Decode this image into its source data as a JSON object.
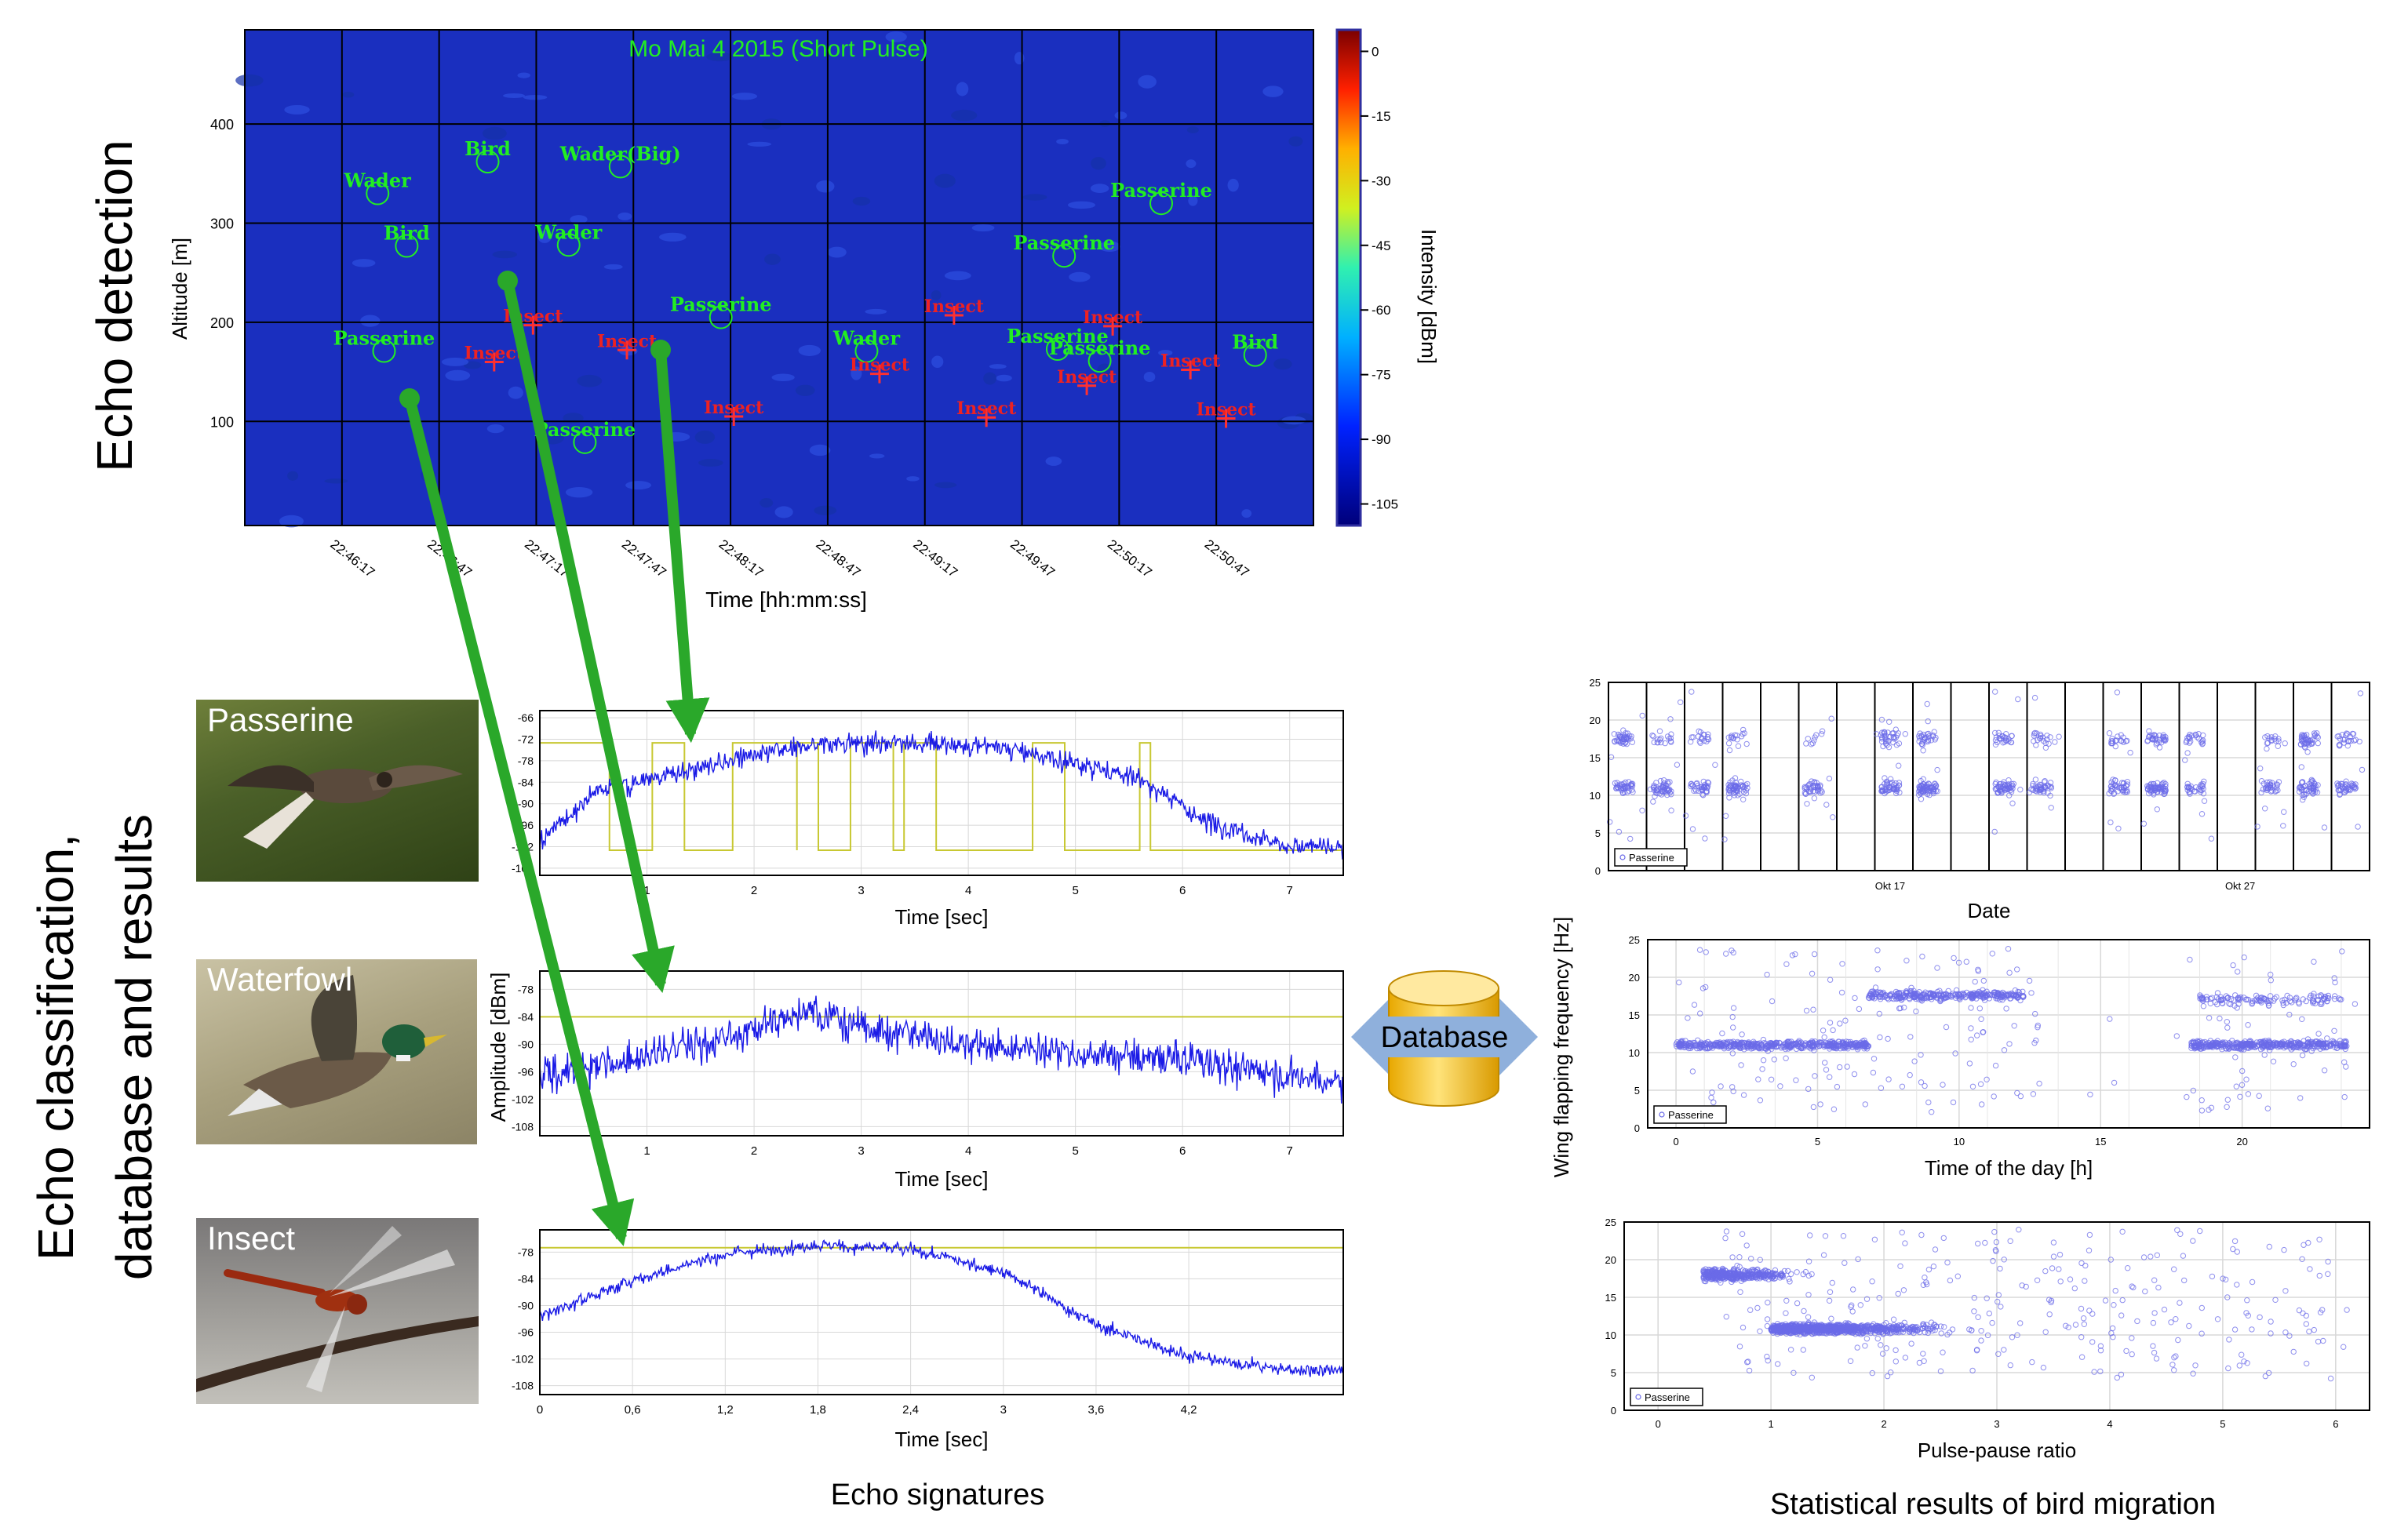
{
  "sections": {
    "echo_detection": "Echo detection",
    "echo_classification": "Echo classification, database and results",
    "classification_line1": "Echo classification,",
    "classification_line2": "database and results"
  },
  "captions": {
    "echo_signatures": "Echo signatures",
    "statistical_results": "Statistical results of bird migration"
  },
  "database": {
    "label": "Database"
  },
  "photos": [
    {
      "label": "Passerine"
    },
    {
      "label": "Waterfowl"
    },
    {
      "label": "Insect"
    }
  ],
  "colors": {
    "heatmap_bg": "#1a2fbf",
    "bird_label": "#22ee22",
    "insect_label": "#ee2222",
    "arrow": "#2aa82a",
    "signal": "#1a1ae6",
    "threshold": "#c8c832",
    "scatter": "#6b6be8",
    "database_cylinder": "#f7c21c",
    "database_arrow": "#8fb0dc"
  },
  "chart_data": [
    {
      "id": "heatmap",
      "type": "heatmap",
      "title": "Mo Mai 4 2015 (Short Pulse)",
      "xlabel": "Time [hh:mm:ss]",
      "ylabel": "Altitude [m]",
      "x_ticks": [
        "22:46:17",
        "22:46:47",
        "22:47:17",
        "22:47:47",
        "22:48:17",
        "22:48:47",
        "22:49:17",
        "22:49:47",
        "22:50:17",
        "22:50:47"
      ],
      "y_ticks": [
        100,
        200,
        300,
        400
      ],
      "ylim": [
        -5,
        495
      ],
      "colorbar": {
        "label": "Intensity [dBm]",
        "ticks": [
          0,
          -15,
          -30,
          -45,
          -60,
          -75,
          -90,
          -105
        ],
        "range": [
          -110,
          5
        ]
      },
      "echoes": [
        {
          "label": "Wader",
          "class": "bird",
          "t": 11,
          "alt": 330
        },
        {
          "label": "Bird",
          "class": "bird",
          "t": 45,
          "alt": 362
        },
        {
          "label": "Wader(Big)",
          "class": "bird",
          "t": 86,
          "alt": 357
        },
        {
          "label": "Bird",
          "class": "bird",
          "t": 20,
          "alt": 277
        },
        {
          "label": "Wader",
          "class": "bird",
          "t": 70,
          "alt": 278
        },
        {
          "label": "Passerine",
          "class": "bird",
          "t": 253,
          "alt": 320
        },
        {
          "label": "Passerine",
          "class": "bird",
          "t": 223,
          "alt": 267
        },
        {
          "label": "Passerine",
          "class": "bird",
          "t": 13,
          "alt": 171
        },
        {
          "label": "Passerine",
          "class": "bird",
          "t": 117,
          "alt": 205
        },
        {
          "label": "Wader",
          "class": "bird",
          "t": 162,
          "alt": 171
        },
        {
          "label": "Passerine",
          "class": "bird",
          "t": 221,
          "alt": 173
        },
        {
          "label": "Passerine",
          "class": "bird",
          "t": 234,
          "alt": 161
        },
        {
          "label": "Bird",
          "class": "bird",
          "t": 282,
          "alt": 167
        },
        {
          "label": "Passerine",
          "class": "bird",
          "t": 75,
          "alt": 79
        },
        {
          "label": "Insect",
          "class": "insect",
          "t": 59,
          "alt": 197
        },
        {
          "label": "Insect",
          "class": "insect",
          "t": 47,
          "alt": 160
        },
        {
          "label": "Insect",
          "class": "insect",
          "t": 88,
          "alt": 172
        },
        {
          "label": "Insect",
          "class": "insect",
          "t": 121,
          "alt": 105
        },
        {
          "label": "Insect",
          "class": "insect",
          "t": 189,
          "alt": 207
        },
        {
          "label": "Insect",
          "class": "insect",
          "t": 166,
          "alt": 148
        },
        {
          "label": "Insect",
          "class": "insect",
          "t": 199,
          "alt": 104
        },
        {
          "label": "Insect",
          "class": "insect",
          "t": 238,
          "alt": 196
        },
        {
          "label": "Insect",
          "class": "insect",
          "t": 230,
          "alt": 136
        },
        {
          "label": "Insect",
          "class": "insect",
          "t": 262,
          "alt": 152
        },
        {
          "label": "Insect",
          "class": "insect",
          "t": 273,
          "alt": 103
        }
      ]
    },
    {
      "id": "signature-passerine",
      "type": "line",
      "xlabel": "Time [sec]",
      "ylabel": "",
      "xlim": [
        0,
        7.5
      ],
      "ylim": [
        -110,
        -64
      ],
      "x_ticks": [
        1,
        2,
        3,
        4,
        5,
        6,
        7
      ],
      "y_ticks": [
        -66,
        -72,
        -78,
        -84,
        -90,
        -96,
        -102,
        -108
      ],
      "threshold": -73,
      "profile": [
        [
          0,
          -100
        ],
        [
          0.5,
          -86
        ],
        [
          1.2,
          -81
        ],
        [
          1.8,
          -77
        ],
        [
          2.5,
          -73
        ],
        [
          3.3,
          -72
        ],
        [
          4.2,
          -73
        ],
        [
          5.0,
          -78
        ],
        [
          5.6,
          -82
        ],
        [
          6.2,
          -94
        ],
        [
          7.0,
          -101
        ],
        [
          7.5,
          -102
        ]
      ]
    },
    {
      "id": "signature-waterfowl",
      "type": "line",
      "xlabel": "Time [sec]",
      "ylabel": "Amplitude [dBm]",
      "xlim": [
        0,
        7.5
      ],
      "ylim": [
        -110,
        -74
      ],
      "x_ticks": [
        1,
        2,
        3,
        4,
        5,
        6,
        7
      ],
      "y_ticks": [
        -78,
        -84,
        -90,
        -96,
        -102,
        -108
      ],
      "threshold": -84,
      "profile": [
        [
          0,
          -96
        ],
        [
          1.0,
          -91
        ],
        [
          2.0,
          -86
        ],
        [
          2.5,
          -81
        ],
        [
          3.0,
          -85
        ],
        [
          4.0,
          -89
        ],
        [
          5.0,
          -91
        ],
        [
          6.0,
          -92
        ],
        [
          7.0,
          -96
        ],
        [
          7.5,
          -97
        ]
      ]
    },
    {
      "id": "signature-insect",
      "type": "line",
      "xlabel": "Time [sec]",
      "ylabel": "",
      "xlim": [
        0,
        5.2
      ],
      "ylim": [
        -110,
        -73
      ],
      "x_ticks": [
        "0",
        "0,6",
        "1,2",
        "1,8",
        "2,4",
        "3",
        "3,6",
        "4,2"
      ],
      "x_tick_values": [
        0,
        0.6,
        1.2,
        1.8,
        2.4,
        3,
        3.6,
        4.2
      ],
      "y_ticks": [
        -78,
        -84,
        -90,
        -96,
        -102,
        -108
      ],
      "threshold": -77,
      "profile": [
        [
          0,
          -92
        ],
        [
          0.6,
          -84
        ],
        [
          1.2,
          -78
        ],
        [
          1.8,
          -76
        ],
        [
          2.4,
          -77
        ],
        [
          3.0,
          -82
        ],
        [
          3.6,
          -94
        ],
        [
          4.2,
          -101
        ],
        [
          4.8,
          -104
        ],
        [
          5.2,
          -104
        ]
      ]
    },
    {
      "id": "scatter-date",
      "type": "scatter",
      "xlabel": "Date",
      "ylabel": "",
      "ylim": [
        0,
        25
      ],
      "y_ticks": [
        0,
        5,
        10,
        15,
        20,
        25
      ],
      "x_ticks": [
        "Okt 17",
        "Okt 27"
      ],
      "legend": "Passerine",
      "legend_position": "bottom-left"
    },
    {
      "id": "scatter-time",
      "type": "scatter",
      "xlabel": "Time of the day [h]",
      "ylabel": "Wing flapping frequency [Hz]",
      "xlim": [
        -1,
        24.5
      ],
      "ylim": [
        0,
        25
      ],
      "x_ticks": [
        0,
        5,
        10,
        15,
        20
      ],
      "y_ticks": [
        0,
        5,
        10,
        15,
        20,
        25
      ],
      "legend": "Passerine",
      "legend_position": "bottom-left"
    },
    {
      "id": "scatter-ratio",
      "type": "scatter",
      "xlabel": "Pulse-pause ratio",
      "ylabel": "",
      "xlim": [
        -0.3,
        6.3
      ],
      "ylim": [
        0,
        25
      ],
      "x_ticks": [
        0,
        1,
        2,
        3,
        4,
        5,
        6
      ],
      "y_ticks": [
        0,
        5,
        10,
        15,
        20,
        25
      ],
      "legend": "Passerine",
      "legend_position": "bottom-left"
    }
  ]
}
